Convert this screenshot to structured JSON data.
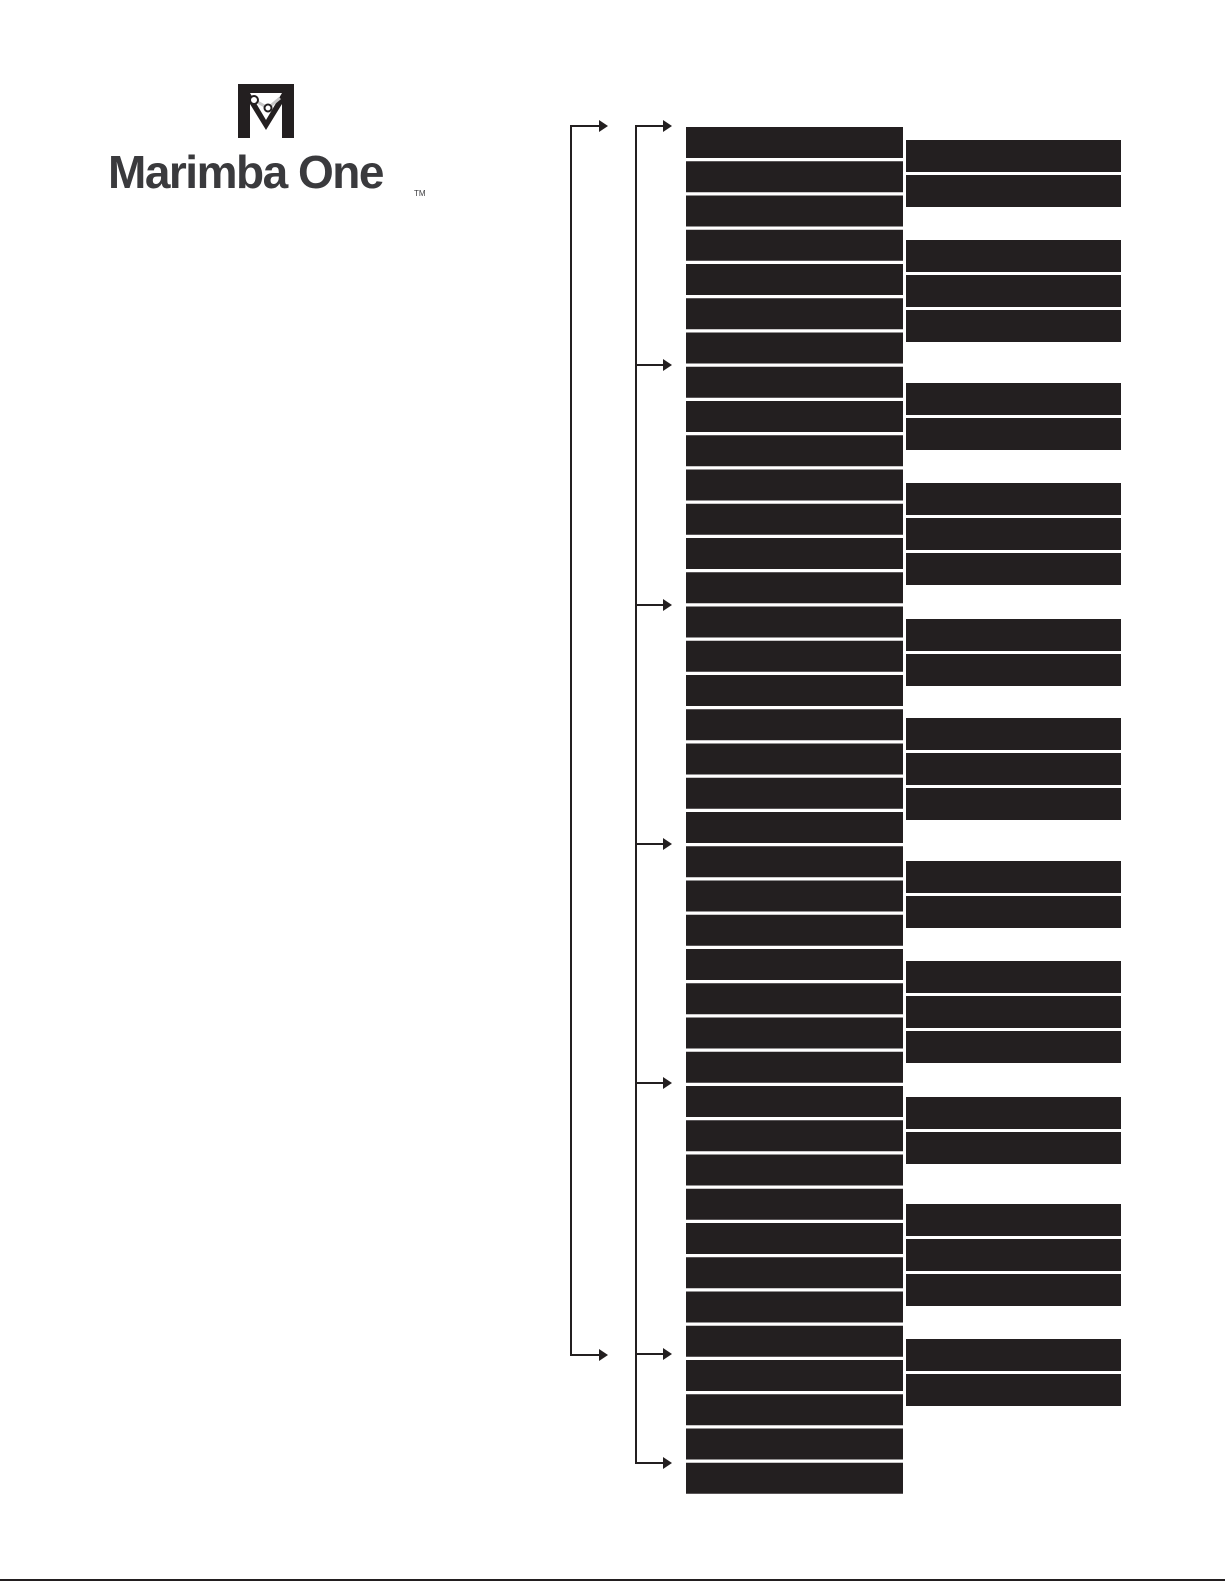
{
  "brand": {
    "name": "Marimba One",
    "trademark": "TM",
    "colors": {
      "ink": "#231f20",
      "text": "#3a3a3d",
      "accent": "#c8c8c8"
    }
  },
  "keyboard": {
    "natural_bars": 40,
    "accidental_groups": [
      2,
      3,
      2,
      3,
      2,
      3,
      2,
      3,
      2,
      3,
      2
    ],
    "bar_color": "#231f20",
    "icons": [
      "logo-mark-icon",
      "arrow-right-icon"
    ]
  }
}
